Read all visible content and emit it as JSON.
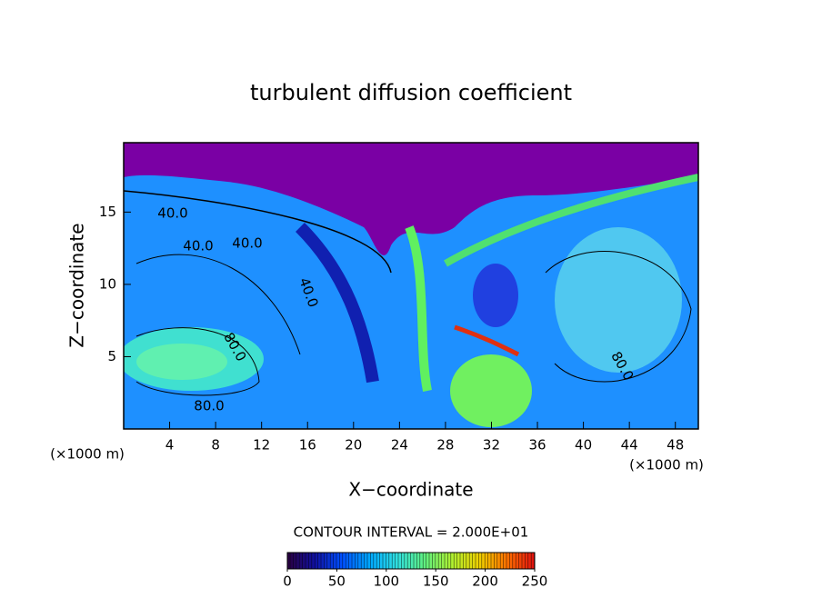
{
  "chart_data": {
    "type": "contour",
    "title": "turbulent diffusion coefficient",
    "x_label": "X−coordinate",
    "y_label": "Z−coordinate",
    "x_unit_label": "(×1000 m)",
    "xlim": [
      0,
      50
    ],
    "xticks": [
      4,
      8,
      12,
      16,
      20,
      24,
      28,
      32,
      36,
      40,
      44,
      48
    ],
    "ylim": [
      0,
      19.8
    ],
    "yticks": [
      5,
      10,
      15
    ],
    "contour_labels": [
      "40.0",
      "40.0",
      "40.0",
      "40.0",
      "80.0",
      "80.0",
      "80.0"
    ],
    "contour_interval_text": "CONTOUR INTERVAL = 2.000E+01",
    "colorbar": {
      "lim": [
        0,
        250
      ],
      "ticks": [
        0,
        50,
        100,
        150,
        200,
        250
      ],
      "colors": [
        "#2a0040",
        "#1010a0",
        "#0050ff",
        "#00a8ff",
        "#30e0e0",
        "#60f080",
        "#b0f030",
        "#f0d000",
        "#ff7000",
        "#e01010"
      ]
    }
  }
}
